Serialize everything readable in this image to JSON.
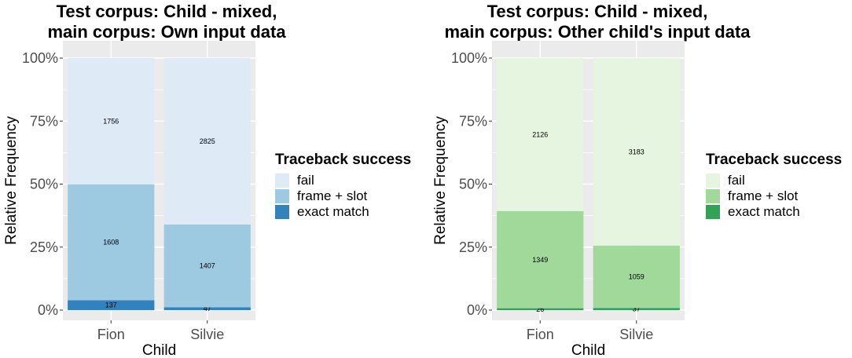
{
  "chart_data": [
    {
      "type": "bar",
      "stacked": true,
      "normalized": true,
      "title_lines": [
        "Test corpus: Child - mixed,",
        "main corpus: Own input data"
      ],
      "xlabel": "Child",
      "ylabel": "Relative Frequency",
      "categories": [
        "Fion",
        "Silvie"
      ],
      "y_ticks": [
        "0%",
        "25%",
        "50%",
        "75%",
        "100%"
      ],
      "ylim": [
        0,
        1
      ],
      "legend": {
        "title": "Traceback success",
        "position": "right"
      },
      "series": [
        {
          "name": "exact match",
          "color": "#3182bd",
          "values": [
            137,
            47
          ]
        },
        {
          "name": "frame + slot",
          "color": "#9ecae1",
          "values": [
            1608,
            1407
          ]
        },
        {
          "name": "fail",
          "color": "#deebf7",
          "values": [
            1756,
            2825
          ]
        }
      ]
    },
    {
      "type": "bar",
      "stacked": true,
      "normalized": true,
      "title_lines": [
        "Test corpus: Child - mixed,",
        "main corpus: Other child's input data"
      ],
      "xlabel": "Child",
      "ylabel": "Relative Frequency",
      "categories": [
        "Fion",
        "Silvie"
      ],
      "y_ticks": [
        "0%",
        "25%",
        "50%",
        "75%",
        "100%"
      ],
      "ylim": [
        0,
        1
      ],
      "legend": {
        "title": "Traceback success",
        "position": "right"
      },
      "series": [
        {
          "name": "exact match",
          "color": "#31a354",
          "values": [
            26,
            37
          ]
        },
        {
          "name": "frame + slot",
          "color": "#a1d99b",
          "values": [
            1349,
            1059
          ]
        },
        {
          "name": "fail",
          "color": "#e5f5e0",
          "values": [
            2126,
            3183
          ]
        }
      ]
    }
  ]
}
